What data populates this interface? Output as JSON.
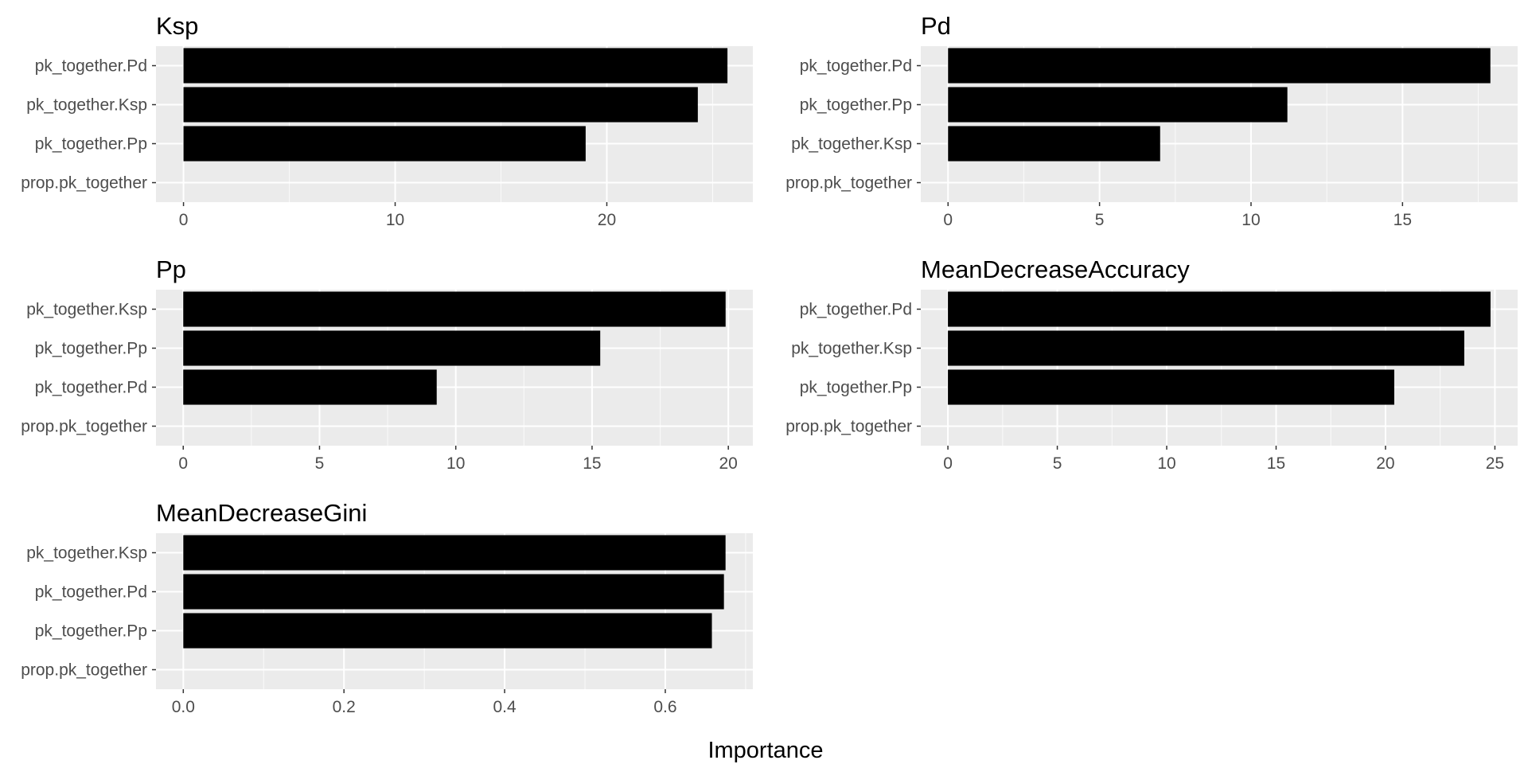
{
  "x_axis_title": "Importance",
  "chart_data": [
    {
      "type": "bar",
      "orientation": "horizontal",
      "title": "Ksp",
      "categories": [
        "pk_together.Pd",
        "pk_together.Ksp",
        "pk_together.Pp",
        "prop.pk_together"
      ],
      "values": [
        25.7,
        24.3,
        19.0,
        0
      ],
      "xlim": [
        -1.3,
        26.9
      ],
      "xticks": [
        0,
        10,
        20
      ],
      "xtick_labels": [
        "0",
        "10",
        "20"
      ],
      "minor_step": 5,
      "bar_color": "#000000",
      "panel_background": "#ebebeb",
      "grid": true
    },
    {
      "type": "bar",
      "orientation": "horizontal",
      "title": "Pd",
      "categories": [
        "pk_together.Pd",
        "pk_together.Pp",
        "pk_together.Ksp",
        "prop.pk_together"
      ],
      "values": [
        17.9,
        11.2,
        7.0,
        0
      ],
      "xlim": [
        -0.9,
        18.8
      ],
      "xticks": [
        0,
        5,
        10,
        15
      ],
      "xtick_labels": [
        "0",
        "5",
        "10",
        "15"
      ],
      "minor_step": 2.5,
      "bar_color": "#000000",
      "panel_background": "#ebebeb",
      "grid": true
    },
    {
      "type": "bar",
      "orientation": "horizontal",
      "title": "Pp",
      "categories": [
        "pk_together.Ksp",
        "pk_together.Pp",
        "pk_together.Pd",
        "prop.pk_together"
      ],
      "values": [
        19.9,
        15.3,
        9.3,
        0
      ],
      "xlim": [
        -1.0,
        20.9
      ],
      "xticks": [
        0,
        5,
        10,
        15,
        20
      ],
      "xtick_labels": [
        "0",
        "5",
        "10",
        "15",
        "20"
      ],
      "minor_step": 2.5,
      "bar_color": "#000000",
      "panel_background": "#ebebeb",
      "grid": true
    },
    {
      "type": "bar",
      "orientation": "horizontal",
      "title": "MeanDecreaseAccuracy",
      "categories": [
        "pk_together.Pd",
        "pk_together.Ksp",
        "pk_together.Pp",
        "prop.pk_together"
      ],
      "values": [
        24.8,
        23.6,
        20.4,
        0
      ],
      "xlim": [
        -1.24,
        26.04
      ],
      "xticks": [
        0,
        5,
        10,
        15,
        20,
        25
      ],
      "xtick_labels": [
        "0",
        "5",
        "10",
        "15",
        "20",
        "25"
      ],
      "minor_step": 2.5,
      "bar_color": "#000000",
      "panel_background": "#ebebeb",
      "grid": true
    },
    {
      "type": "bar",
      "orientation": "horizontal",
      "title": "MeanDecreaseGini",
      "categories": [
        "pk_together.Ksp",
        "pk_together.Pd",
        "pk_together.Pp",
        "prop.pk_together"
      ],
      "values": [
        0.675,
        0.673,
        0.658,
        0
      ],
      "xlim": [
        -0.034,
        0.709
      ],
      "xticks": [
        0,
        0.2,
        0.4,
        0.6
      ],
      "xtick_labels": [
        "0.0",
        "0.2",
        "0.4",
        "0.6"
      ],
      "minor_step": 0.1,
      "bar_color": "#000000",
      "panel_background": "#ebebeb",
      "grid": true
    }
  ]
}
